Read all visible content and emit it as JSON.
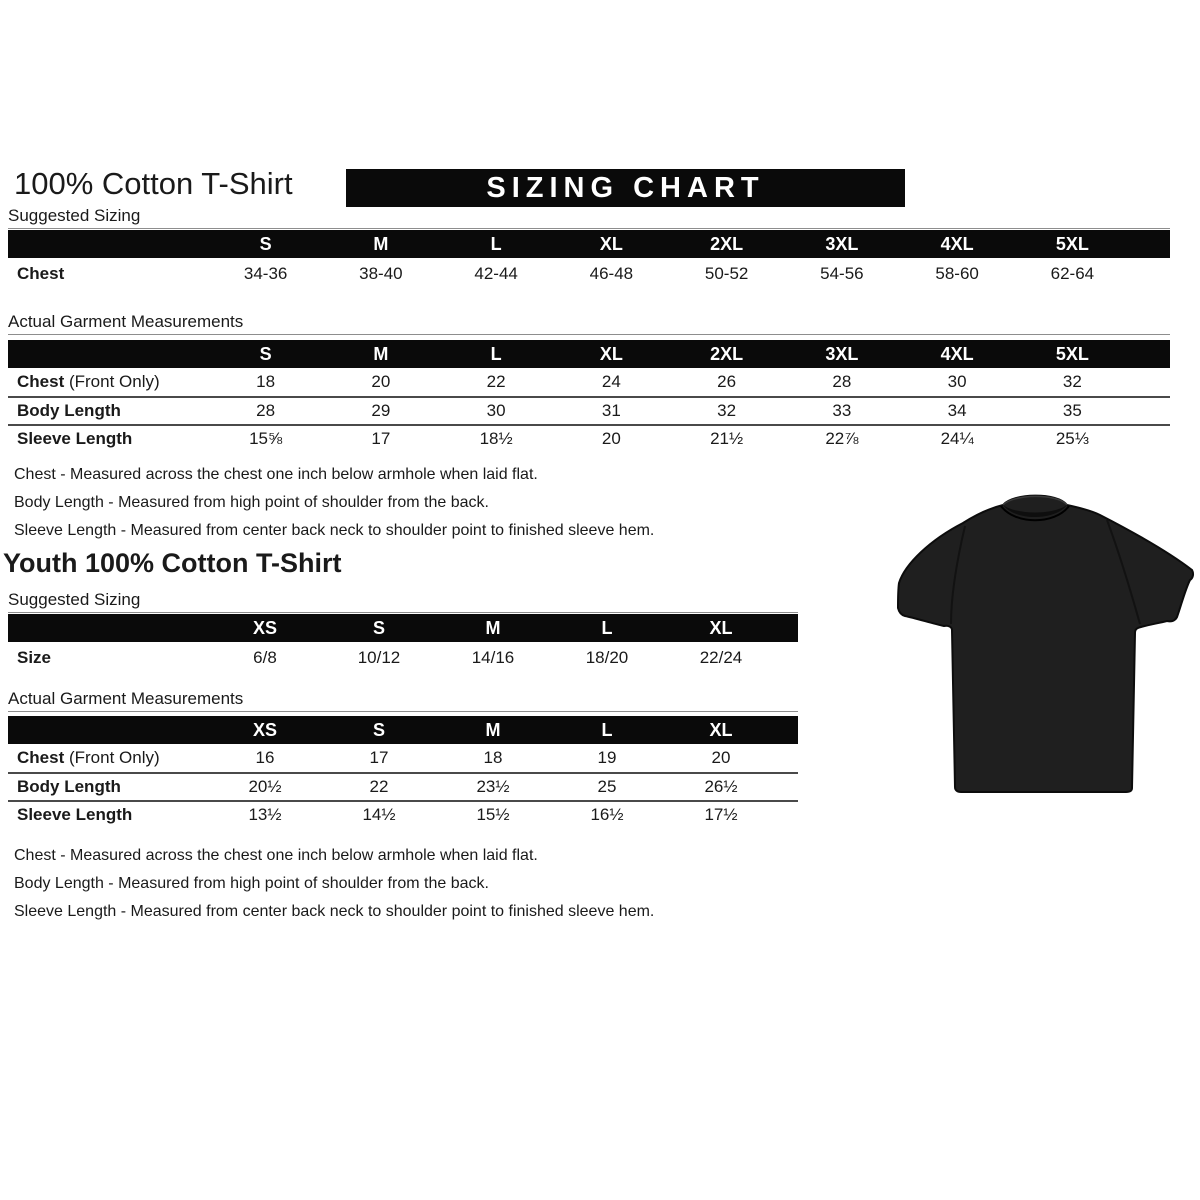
{
  "colors": {
    "page_bg": "#ffffff",
    "banner_bg": "#0a0a0a",
    "table_head_bg": "#0a0a0a",
    "text": "#1a1a1a",
    "row_border": "#4a4a4a",
    "label_line": "#8d8d8d",
    "tshirt_fill": "#1f1f1f"
  },
  "header": {
    "title": "100% Cotton T-Shirt",
    "banner": "SIZING CHART",
    "youth_title": "Youth 100% Cotton T-Shirt"
  },
  "sections": {
    "adult_suggested_label": "Suggested Sizing",
    "adult_actual_label": "Actual Garment Measurements",
    "youth_suggested_label": "Suggested Sizing",
    "youth_actual_label": "Actual Garment Measurements"
  },
  "tables": {
    "adult_suggested": {
      "columns": [
        "",
        "S",
        "M",
        "L",
        "XL",
        "2XL",
        "3XL",
        "4XL",
        "5XL"
      ],
      "rows": [
        {
          "label": "Chest",
          "values": [
            "34-36",
            "38-40",
            "42-44",
            "46-48",
            "50-52",
            "54-56",
            "58-60",
            "62-64"
          ]
        }
      ]
    },
    "adult_actual": {
      "columns": [
        "",
        "S",
        "M",
        "L",
        "XL",
        "2XL",
        "3XL",
        "4XL",
        "5XL"
      ],
      "rows": [
        {
          "label": "Chest",
          "label_suffix": " (Front Only)",
          "values": [
            "18",
            "20",
            "22",
            "24",
            "26",
            "28",
            "30",
            "32"
          ]
        },
        {
          "label": "Body Length",
          "values": [
            "28",
            "29",
            "30",
            "31",
            "32",
            "33",
            "34",
            "35"
          ]
        },
        {
          "label": "Sleeve Length",
          "values": [
            "15⅝",
            "17",
            "18½",
            "20",
            "21½",
            "22⅞",
            "24¼",
            "25⅓"
          ]
        }
      ]
    },
    "youth_suggested": {
      "columns": [
        "",
        "XS",
        "S",
        "M",
        "L",
        "XL"
      ],
      "rows": [
        {
          "label": "Size",
          "values": [
            "6/8",
            "10/12",
            "14/16",
            "18/20",
            "22/24"
          ]
        }
      ]
    },
    "youth_actual": {
      "columns": [
        "",
        "XS",
        "S",
        "M",
        "L",
        "XL"
      ],
      "rows": [
        {
          "label": "Chest",
          "label_suffix": " (Front Only)",
          "values": [
            "16",
            "17",
            "18",
            "19",
            "20"
          ]
        },
        {
          "label": "Body Length",
          "values": [
            "20½",
            "22",
            "23½",
            "25",
            "26½"
          ]
        },
        {
          "label": "Sleeve Length",
          "values": [
            "13½",
            "14½",
            "15½",
            "16½",
            "17½"
          ]
        }
      ]
    }
  },
  "notes_adult": [
    "Chest - Measured across the chest one inch below armhole when laid flat.",
    "Body Length - Measured from high point of shoulder from the back.",
    "Sleeve Length - Measured from center back neck to shoulder point to finished sleeve hem."
  ],
  "notes_youth": [
    "Chest - Measured across the chest one inch below armhole when laid flat.",
    "Body Length - Measured from high point of shoulder from the back.",
    "Sleeve Length - Measured from center back neck to shoulder point to finished sleeve hem."
  ],
  "tshirt": {
    "alt": "Black short-sleeve crew neck t-shirt"
  }
}
